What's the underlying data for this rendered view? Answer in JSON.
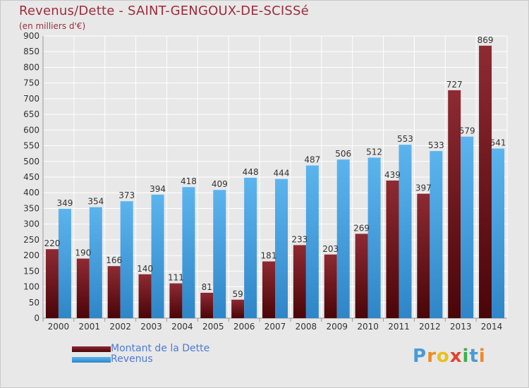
{
  "title": "Revenus/Dette - SAINT-GENGOUX-DE-SCISSé",
  "subtitle": "(en milliers d'€)",
  "logo_text": "Proxiti",
  "legend": [
    {
      "label": "Montant de la Dette",
      "color": "#8b1a22"
    },
    {
      "label": "Revenus",
      "color": "#4aa8e8"
    }
  ],
  "chart_data": {
    "type": "bar",
    "title": "Revenus/Dette - SAINT-GENGOUX-DE-SCISSé",
    "subtitle": "(en milliers d'€)",
    "categories": [
      "2000",
      "2001",
      "2002",
      "2003",
      "2004",
      "2005",
      "2006",
      "2007",
      "2008",
      "2009",
      "2010",
      "2011",
      "2012",
      "2013",
      "2014"
    ],
    "series": [
      {
        "name": "Montant de la Dette",
        "color": "#8b1a22",
        "values": [
          220,
          190,
          166,
          140,
          111,
          81,
          59,
          181,
          233,
          203,
          269,
          439,
          397,
          727,
          869
        ]
      },
      {
        "name": "Revenus",
        "color": "#4aa8e8",
        "values": [
          349,
          354,
          373,
          394,
          418,
          409,
          448,
          444,
          487,
          506,
          512,
          553,
          533,
          579,
          541
        ]
      }
    ],
    "ylim": [
      0,
      900
    ],
    "yticks": [
      0,
      50,
      100,
      150,
      200,
      250,
      300,
      350,
      400,
      450,
      500,
      550,
      600,
      650,
      700,
      750,
      800,
      850,
      900
    ],
    "grid": true,
    "legend_position": "bottom-left"
  }
}
